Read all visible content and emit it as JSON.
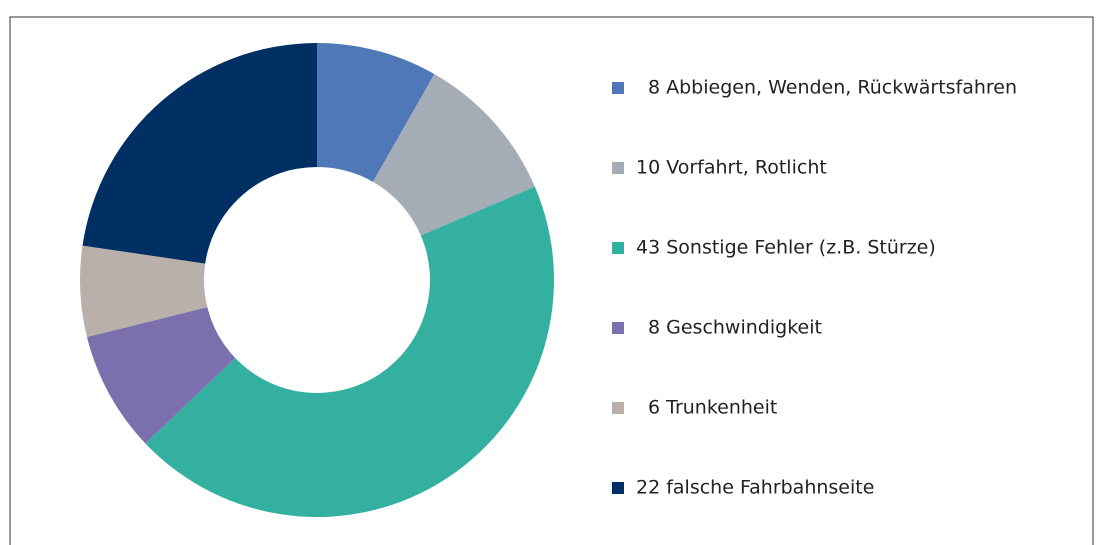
{
  "chart_data": {
    "type": "donut",
    "categories": [
      "8 Abbiegen, Wenden, Rückwärtsfahren",
      "10 Vorfahrt, Rotlicht",
      "43 Sonstige Fehler (z.B. Stürze)",
      "8 Geschwindigkeit",
      "6 Trunkenheit",
      "22 falsche Fahrbahnseite"
    ],
    "values": [
      8,
      10,
      43,
      8,
      6,
      22
    ],
    "colors": [
      "#4e78b8",
      "#a4acb5",
      "#33b09f",
      "#7c6fae",
      "#b9b0a9",
      "#003063"
    ],
    "legend": "right"
  }
}
